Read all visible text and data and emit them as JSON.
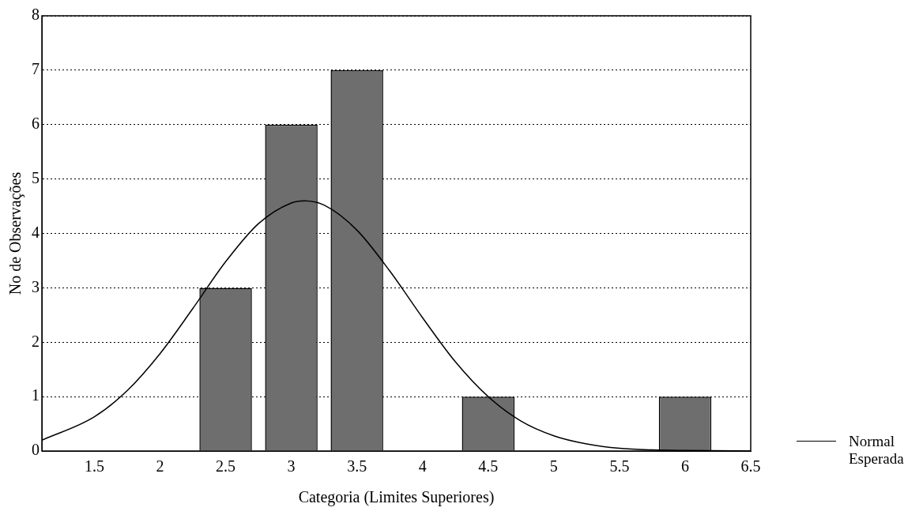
{
  "chart_data": {
    "type": "bar",
    "xlabel": "Categoria (Limites Superiores)",
    "ylabel": "No de Observações",
    "xlim": [
      1.1,
      6.5
    ],
    "xticks": [
      1.5,
      2,
      2.5,
      3,
      3.5,
      4,
      4.5,
      5,
      5.5,
      6,
      6.5
    ],
    "ylim": [
      0,
      8
    ],
    "yticks": [
      0,
      1,
      2,
      3,
      4,
      5,
      6,
      7,
      8
    ],
    "grid": "y",
    "legend": "bottom right",
    "marker": "none",
    "line_style": "solid",
    "series": [
      {
        "color": "#6e6e6e",
        "x": [
          2.5,
          3,
          3.5,
          4.5,
          6
        ],
        "values": [
          3,
          6,
          7,
          1,
          1
        ]
      },
      {
        "type": "line",
        "name": "Normal Esperada",
        "color": "#000000",
        "x": [
          1.1,
          1.5,
          1.75,
          2,
          2.25,
          2.5,
          2.75,
          3,
          3.1,
          3.25,
          3.5,
          3.75,
          4,
          4.25,
          4.5,
          4.75,
          5,
          5.25,
          5.5,
          5.75,
          6,
          6.5
        ],
        "values": [
          0.2,
          0.63,
          1.11,
          1.79,
          2.62,
          3.48,
          4.18,
          4.56,
          4.6,
          4.52,
          4.06,
          3.31,
          2.45,
          1.64,
          1,
          0.55,
          0.28,
          0.13,
          0.05,
          0.02,
          0.01,
          0
        ]
      }
    ]
  }
}
